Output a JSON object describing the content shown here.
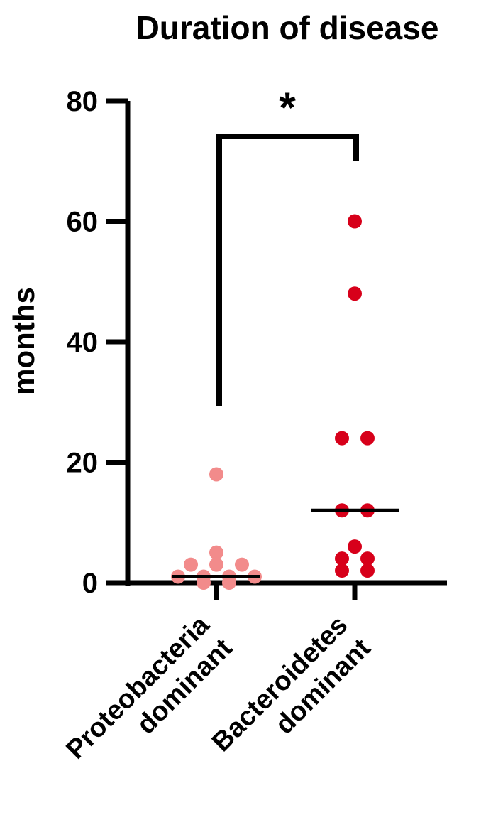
{
  "chart_data": {
    "type": "strip",
    "title": "Duration of disease",
    "y_label": "months",
    "categories": [
      "Proteobacteria dominant",
      "Bacteroidetes dominant"
    ],
    "series": [
      {
        "color": "#f28b8b",
        "values": [
          18,
          5,
          3,
          3,
          3,
          1,
          1,
          1,
          1,
          0,
          0
        ],
        "median": 1
      },
      {
        "color": "#d7001a",
        "values": [
          60,
          48,
          24,
          24,
          12,
          12,
          6,
          4,
          4,
          2,
          2
        ],
        "median": 12
      }
    ],
    "ylim": [
      0,
      80
    ],
    "yticks": [
      0,
      20,
      40,
      60,
      80
    ],
    "annotation": "*"
  }
}
